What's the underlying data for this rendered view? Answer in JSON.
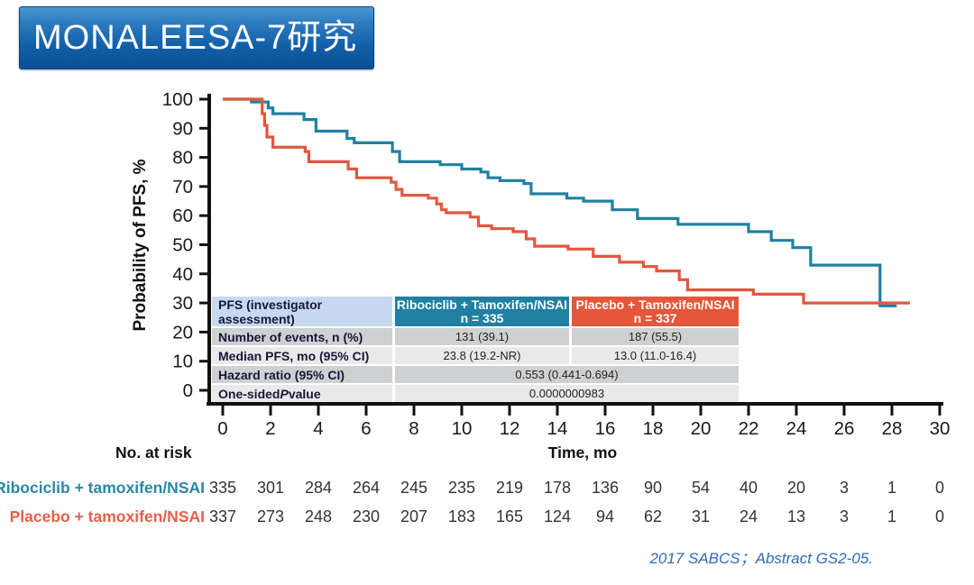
{
  "banner": {
    "title": "MONALEESA-7研究"
  },
  "colors": {
    "ribociclib_teal": "#2180a1",
    "placebo_red": "#e1573e",
    "banner_blue": "#1260a8",
    "citation_blue": "#2d6cb5",
    "axis_black": "#111111"
  },
  "chart_data": {
    "type": "line",
    "subtype": "kaplan-meier-step",
    "title": "",
    "xlabel": "Time, mo",
    "ylabel": "Probability of PFS, %",
    "xlim": [
      0,
      30
    ],
    "ylim": [
      0,
      100
    ],
    "x_ticks": [
      0,
      2,
      4,
      6,
      8,
      10,
      12,
      14,
      16,
      18,
      20,
      22,
      24,
      26,
      28,
      30
    ],
    "y_ticks": [
      0,
      10,
      20,
      30,
      40,
      50,
      60,
      70,
      80,
      90,
      100
    ],
    "grid": false,
    "legend_position": "none",
    "series": [
      {
        "name": "Ribociclib + tamoxifen/NSAI",
        "color": "#2180a1",
        "steps": [
          [
            0,
            100
          ],
          [
            1.2,
            99
          ],
          [
            1.9,
            97
          ],
          [
            2.1,
            95
          ],
          [
            3.4,
            93
          ],
          [
            3.9,
            89
          ],
          [
            5.2,
            86.5
          ],
          [
            5.5,
            85
          ],
          [
            7.1,
            82
          ],
          [
            7.4,
            78.5
          ],
          [
            9.1,
            77.5
          ],
          [
            10.0,
            76
          ],
          [
            10.8,
            75
          ],
          [
            11.1,
            73
          ],
          [
            11.6,
            72
          ],
          [
            12.6,
            71
          ],
          [
            12.9,
            67.5
          ],
          [
            14.4,
            66
          ],
          [
            15.1,
            65
          ],
          [
            16.3,
            62
          ],
          [
            17.35,
            59
          ],
          [
            19.05,
            57
          ],
          [
            22.0,
            54.5
          ],
          [
            22.95,
            51.5
          ],
          [
            23.85,
            49
          ],
          [
            24.6,
            43
          ],
          [
            27.5,
            29
          ]
        ],
        "end": 28.2
      },
      {
        "name": "Placebo + tamoxifen/NSAI",
        "color": "#e1573e",
        "steps": [
          [
            0,
            100
          ],
          [
            1.65,
            95
          ],
          [
            1.75,
            91
          ],
          [
            1.85,
            87
          ],
          [
            2.1,
            83.5
          ],
          [
            3.45,
            82
          ],
          [
            3.6,
            78.5
          ],
          [
            5.25,
            76
          ],
          [
            5.6,
            73
          ],
          [
            7.05,
            71.5
          ],
          [
            7.25,
            69
          ],
          [
            7.5,
            67
          ],
          [
            8.6,
            66
          ],
          [
            8.95,
            64
          ],
          [
            9.15,
            62
          ],
          [
            9.35,
            61
          ],
          [
            10.35,
            59.5
          ],
          [
            10.7,
            56.5
          ],
          [
            11.25,
            55.5
          ],
          [
            12.15,
            54.5
          ],
          [
            12.7,
            52
          ],
          [
            13.05,
            49.5
          ],
          [
            14.45,
            48.5
          ],
          [
            15.5,
            46
          ],
          [
            16.6,
            44
          ],
          [
            17.6,
            42.5
          ],
          [
            18.15,
            41
          ],
          [
            19.1,
            38
          ],
          [
            19.45,
            34.5
          ],
          [
            22.2,
            33
          ],
          [
            24.3,
            30
          ]
        ],
        "end": 28.75
      }
    ]
  },
  "stats_table": {
    "header": {
      "label": "PFS (investigator assessment)",
      "col1": [
        "Ribociclib + Tamoxifen/NSAI",
        "n = 335"
      ],
      "col2": [
        "Placebo + Tamoxifen/NSAI",
        "n = 337"
      ]
    },
    "rows": [
      {
        "label": "Number of events, n (%)",
        "col1": "131 (39.1)",
        "col2": "187 (55.5)"
      },
      {
        "label": "Median PFS, mo (95% CI)",
        "col1": "23.8 (19.2-NR)",
        "col2": "13.0 (11.0-16.4)"
      },
      {
        "label": "Hazard ratio (95% CI)",
        "merged": "0.553 (0.441-0.694)"
      },
      {
        "label_parts": [
          "One-sided ",
          "P",
          " value"
        ],
        "merged": "0.0000000983"
      }
    ]
  },
  "at_risk": {
    "label": "No. at risk",
    "rows": [
      {
        "name": "Ribociclib + tamoxifen/NSAI",
        "color": "#2a87a6",
        "counts": [
          335,
          301,
          284,
          264,
          245,
          235,
          219,
          178,
          136,
          90,
          54,
          40,
          20,
          3,
          1,
          0
        ]
      },
      {
        "name": "Placebo + tamoxifen/NSAI",
        "color": "#e4604a",
        "counts": [
          337,
          273,
          248,
          230,
          207,
          183,
          165,
          124,
          94,
          62,
          31,
          24,
          13,
          3,
          1,
          0
        ]
      }
    ]
  },
  "citation": {
    "text": "2017 SABCS；Abstract GS2-05."
  }
}
